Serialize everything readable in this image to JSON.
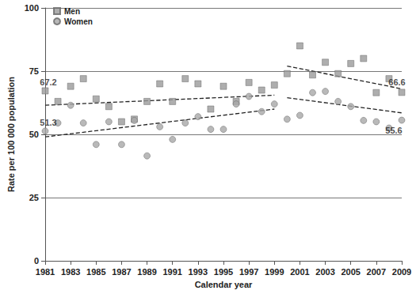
{
  "chart_data": {
    "type": "scatter",
    "x_label": "Calendar year",
    "y_label": "Rate per 100 000 population",
    "x": [
      1981,
      1982,
      1983,
      1984,
      1985,
      1986,
      1987,
      1988,
      1989,
      1990,
      1991,
      1992,
      1993,
      1994,
      1995,
      1996,
      1997,
      1998,
      1999,
      2000,
      2001,
      2002,
      2003,
      2004,
      2005,
      2006,
      2007,
      2008,
      2009
    ],
    "series": [
      {
        "name": "Men",
        "color": "#9a9a9a",
        "marker": "square",
        "values": [
          67.2,
          63,
          69,
          72,
          64,
          61,
          55,
          56,
          63,
          70,
          63,
          72,
          70,
          60,
          69,
          63,
          70.5,
          67.5,
          69.5,
          74,
          85,
          73.5,
          78.5,
          74,
          78,
          80,
          66.5,
          72,
          66.6
        ]
      },
      {
        "name": "Women",
        "color": "#a8a8a8",
        "marker": "circle",
        "values": [
          51.3,
          54.5,
          61.5,
          54.5,
          46,
          55,
          46,
          55.5,
          41.5,
          53,
          48,
          54.5,
          57,
          52,
          52,
          62,
          65,
          59,
          62,
          56,
          57.5,
          66.5,
          67,
          63,
          61,
          55.5,
          55,
          52.5,
          55.6
        ]
      }
    ],
    "trend_lines": [
      {
        "series": "Men",
        "x": [
          1981,
          1999
        ],
        "values": [
          61.5,
          65.5
        ],
        "color": "#222222",
        "line_style": "dashed"
      },
      {
        "series": "Women",
        "x": [
          1981,
          1999
        ],
        "values": [
          49,
          60
        ],
        "color": "#222222",
        "line_style": "dashed"
      },
      {
        "series": "Men",
        "x": [
          2000,
          2009
        ],
        "values": [
          77,
          68
        ],
        "color": "#222222",
        "line_style": "dashed"
      },
      {
        "series": "Women",
        "x": [
          2000,
          2009
        ],
        "values": [
          64.5,
          58.5
        ],
        "color": "#222222",
        "line_style": "dashed"
      }
    ],
    "annotations": [
      {
        "x": 1981,
        "y": 67.2,
        "text": "67.2"
      },
      {
        "x": 1981,
        "y": 51.3,
        "text": "51.3"
      },
      {
        "x": 2009,
        "y": 66.6,
        "text": "66.6"
      },
      {
        "x": 2009,
        "y": 55.6,
        "text": "55.6"
      }
    ],
    "xlim": [
      1981,
      2009
    ],
    "xticks": [
      1981,
      1983,
      1985,
      1987,
      1989,
      1991,
      1993,
      1995,
      1997,
      1999,
      2001,
      2003,
      2005,
      2007,
      2009
    ],
    "ylim": [
      0,
      100
    ],
    "yticks": [
      0,
      25,
      50,
      75,
      100
    ],
    "grid": true,
    "legend": "upper left"
  }
}
